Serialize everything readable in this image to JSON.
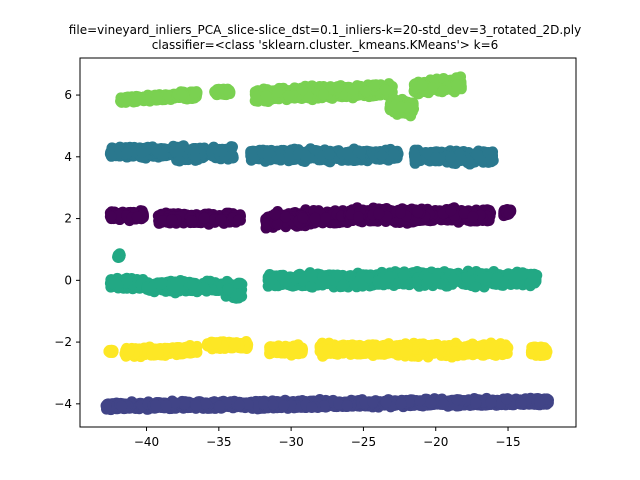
{
  "chart_data": {
    "type": "scatter",
    "title_line1": "file=vineyard_inliers_PCA_slice-slice_dst=0.1_inliers-k=20-std_dev=3_rotated_2D.ply",
    "title_line2": "classifier=<class 'sklearn.cluster._kmeans.KMeans'> k=6",
    "xlabel": "",
    "ylabel": "",
    "xlim": [
      -44.6,
      -10.3
    ],
    "ylim": [
      -4.75,
      7.2
    ],
    "xticks": [
      -40,
      -35,
      -30,
      -25,
      -20,
      -15
    ],
    "xtick_labels": [
      "−40",
      "−35",
      "−30",
      "−25",
      "−20",
      "−15"
    ],
    "yticks": [
      -4,
      -2,
      0,
      2,
      4,
      6
    ],
    "ytick_labels": [
      "−4",
      "−2",
      "0",
      "2",
      "4",
      "6"
    ],
    "grid": false,
    "legend": "none",
    "series": [
      {
        "color": "#7ad151",
        "segments": [
          {
            "x0": -41.8,
            "x1": -38.0,
            "yc": 5.9,
            "slope": 0.03,
            "spread": 0.12
          },
          {
            "x0": -38.0,
            "x1": -36.5,
            "yc": 6.0,
            "slope": 0.02,
            "spread": 0.15
          },
          {
            "x0": -35.3,
            "x1": -34.2,
            "yc": 6.1,
            "slope": 0.0,
            "spread": 0.12
          },
          {
            "x0": -32.5,
            "x1": -25.0,
            "yc": 6.05,
            "slope": 0.02,
            "spread": 0.28
          },
          {
            "x0": -25.0,
            "x1": -23.0,
            "yc": 6.15,
            "slope": 0.05,
            "spread": 0.3
          },
          {
            "x0": -23.2,
            "x1": -21.5,
            "yc": 5.6,
            "slope": 0.0,
            "spread": 0.35
          },
          {
            "x0": -21.5,
            "x1": -18.2,
            "yc": 6.3,
            "slope": 0.04,
            "spread": 0.28
          }
        ]
      },
      {
        "color": "#2a788e",
        "segments": [
          {
            "x0": -42.5,
            "x1": -38.5,
            "yc": 4.15,
            "slope": 0.0,
            "spread": 0.22
          },
          {
            "x0": -38.2,
            "x1": -36.0,
            "yc": 4.1,
            "slope": 0.0,
            "spread": 0.3
          },
          {
            "x0": -35.5,
            "x1": -34.0,
            "yc": 4.1,
            "slope": 0.0,
            "spread": 0.28
          },
          {
            "x0": -32.8,
            "x1": -24.5,
            "yc": 4.05,
            "slope": 0.0,
            "spread": 0.25
          },
          {
            "x0": -24.5,
            "x1": -22.6,
            "yc": 4.05,
            "slope": 0.0,
            "spread": 0.22
          },
          {
            "x0": -21.5,
            "x1": -16.0,
            "yc": 4.0,
            "slope": 0.0,
            "spread": 0.25
          }
        ]
      },
      {
        "color": "#440154",
        "segments": [
          {
            "x0": -42.5,
            "x1": -40.2,
            "yc": 2.1,
            "slope": 0.0,
            "spread": 0.18
          },
          {
            "x0": -39.2,
            "x1": -33.5,
            "yc": 2.0,
            "slope": 0.0,
            "spread": 0.22
          },
          {
            "x0": -31.8,
            "x1": -26.0,
            "yc": 2.0,
            "slope": 0.03,
            "spread": 0.3
          },
          {
            "x0": -26.0,
            "x1": -16.2,
            "yc": 2.1,
            "slope": 0.0,
            "spread": 0.28
          },
          {
            "x0": -15.3,
            "x1": -14.8,
            "yc": 2.2,
            "slope": 0.0,
            "spread": 0.15
          }
        ]
      },
      {
        "color": "#22a884",
        "segments": [
          {
            "x0": -42.5,
            "x1": -40.2,
            "yc": -0.1,
            "slope": 0.0,
            "spread": 0.22
          },
          {
            "x0": -40.0,
            "x1": -34.2,
            "yc": -0.2,
            "slope": 0.0,
            "spread": 0.22
          },
          {
            "x0": -34.5,
            "x1": -33.4,
            "yc": -0.3,
            "slope": 0.0,
            "spread": 0.35
          },
          {
            "x0": -31.6,
            "x1": -24.0,
            "yc": 0.0,
            "slope": 0.0,
            "spread": 0.28
          },
          {
            "x0": -24.0,
            "x1": -13.0,
            "yc": 0.05,
            "slope": 0.0,
            "spread": 0.3
          },
          {
            "x0": -42.0,
            "x1": -41.8,
            "yc": 0.8,
            "slope": 0.0,
            "spread": 0.1
          }
        ]
      },
      {
        "color": "#fde725",
        "segments": [
          {
            "x0": -42.6,
            "x1": -42.3,
            "yc": -2.3,
            "slope": 0.0,
            "spread": 0.05
          },
          {
            "x0": -41.5,
            "x1": -36.5,
            "yc": -2.3,
            "slope": 0.02,
            "spread": 0.18
          },
          {
            "x0": -35.8,
            "x1": -33.0,
            "yc": -2.1,
            "slope": 0.0,
            "spread": 0.15
          },
          {
            "x0": -31.5,
            "x1": -29.2,
            "yc": -2.25,
            "slope": 0.0,
            "spread": 0.2
          },
          {
            "x0": -28.0,
            "x1": -15.0,
            "yc": -2.25,
            "slope": 0.0,
            "spread": 0.25
          },
          {
            "x0": -13.4,
            "x1": -12.3,
            "yc": -2.3,
            "slope": 0.0,
            "spread": 0.2
          }
        ]
      },
      {
        "color": "#414487",
        "segments": [
          {
            "x0": -42.8,
            "x1": -12.2,
            "yc": -4.0,
            "slope": 0.005,
            "spread": 0.15
          }
        ]
      }
    ]
  }
}
